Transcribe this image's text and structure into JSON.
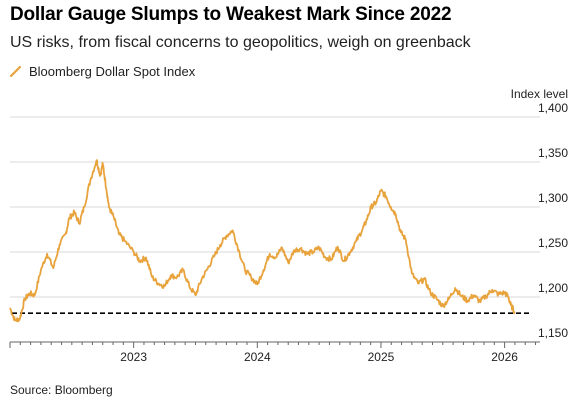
{
  "title": "Dollar Gauge Slumps to Weakest Mark Since 2022",
  "subtitle": "US risks, from fiscal concerns to geopolitics, weigh on greenback",
  "legend": {
    "label": "Bloomberg Dollar Spot Index",
    "icon": "orange-slash-icon"
  },
  "source": "Source: Bloomberg",
  "colors": {
    "series": "#E8A33D",
    "grid": "#d9d9d9",
    "reference": "#000000"
  },
  "chart_data": {
    "type": "line",
    "ylabel": "Index level",
    "ylim": [
      1150,
      1400
    ],
    "yticks": [
      1150,
      1200,
      1250,
      1300,
      1350,
      1400
    ],
    "ytick_labels": [
      "1,150",
      "1,200",
      "1,250",
      "1,300",
      "1,350",
      "1,400"
    ],
    "xlim": [
      2022.0,
      2026.27
    ],
    "xticks": [
      2023,
      2024,
      2025,
      2026
    ],
    "xtick_labels": [
      "2023",
      "2024",
      "2025",
      "2026"
    ],
    "grid": true,
    "legend_position": "top-left",
    "reference_line": {
      "value": 1182,
      "style": "dashed"
    },
    "series": [
      {
        "name": "Bloomberg Dollar Spot Index",
        "x": [
          2022.0,
          2022.04,
          2022.08,
          2022.12,
          2022.16,
          2022.2,
          2022.25,
          2022.3,
          2022.35,
          2022.4,
          2022.45,
          2022.48,
          2022.52,
          2022.56,
          2022.6,
          2022.65,
          2022.7,
          2022.73,
          2022.75,
          2022.78,
          2022.8,
          2022.84,
          2022.88,
          2022.93,
          2023.0,
          2023.05,
          2023.1,
          2023.15,
          2023.2,
          2023.25,
          2023.3,
          2023.35,
          2023.4,
          2023.45,
          2023.5,
          2023.55,
          2023.6,
          2023.65,
          2023.7,
          2023.75,
          2023.8,
          2023.85,
          2023.9,
          2023.95,
          2024.0,
          2024.05,
          2024.1,
          2024.15,
          2024.2,
          2024.25,
          2024.3,
          2024.35,
          2024.4,
          2024.45,
          2024.5,
          2024.55,
          2024.6,
          2024.65,
          2024.7,
          2024.75,
          2024.8,
          2024.85,
          2024.88,
          2024.92,
          2024.96,
          2025.0,
          2025.04,
          2025.08,
          2025.12,
          2025.16,
          2025.2,
          2025.25,
          2025.3,
          2025.35,
          2025.4,
          2025.45,
          2025.5,
          2025.55,
          2025.6,
          2025.65,
          2025.7,
          2025.75,
          2025.8,
          2025.85,
          2025.9,
          2025.95,
          2026.0,
          2026.03,
          2026.05,
          2026.08
        ],
        "values": [
          1188,
          1174,
          1176,
          1198,
          1204,
          1202,
          1230,
          1248,
          1232,
          1258,
          1270,
          1288,
          1294,
          1282,
          1300,
          1330,
          1352,
          1335,
          1348,
          1320,
          1300,
          1288,
          1270,
          1262,
          1250,
          1240,
          1244,
          1222,
          1215,
          1212,
          1224,
          1222,
          1230,
          1212,
          1202,
          1220,
          1232,
          1245,
          1258,
          1268,
          1274,
          1252,
          1230,
          1222,
          1214,
          1230,
          1248,
          1244,
          1255,
          1238,
          1252,
          1254,
          1248,
          1250,
          1255,
          1244,
          1242,
          1256,
          1240,
          1250,
          1262,
          1275,
          1284,
          1300,
          1305,
          1318,
          1312,
          1300,
          1292,
          1272,
          1264,
          1226,
          1215,
          1220,
          1205,
          1198,
          1190,
          1198,
          1210,
          1201,
          1196,
          1202,
          1195,
          1201,
          1208,
          1203,
          1205,
          1200,
          1191,
          1184
        ]
      }
    ]
  }
}
